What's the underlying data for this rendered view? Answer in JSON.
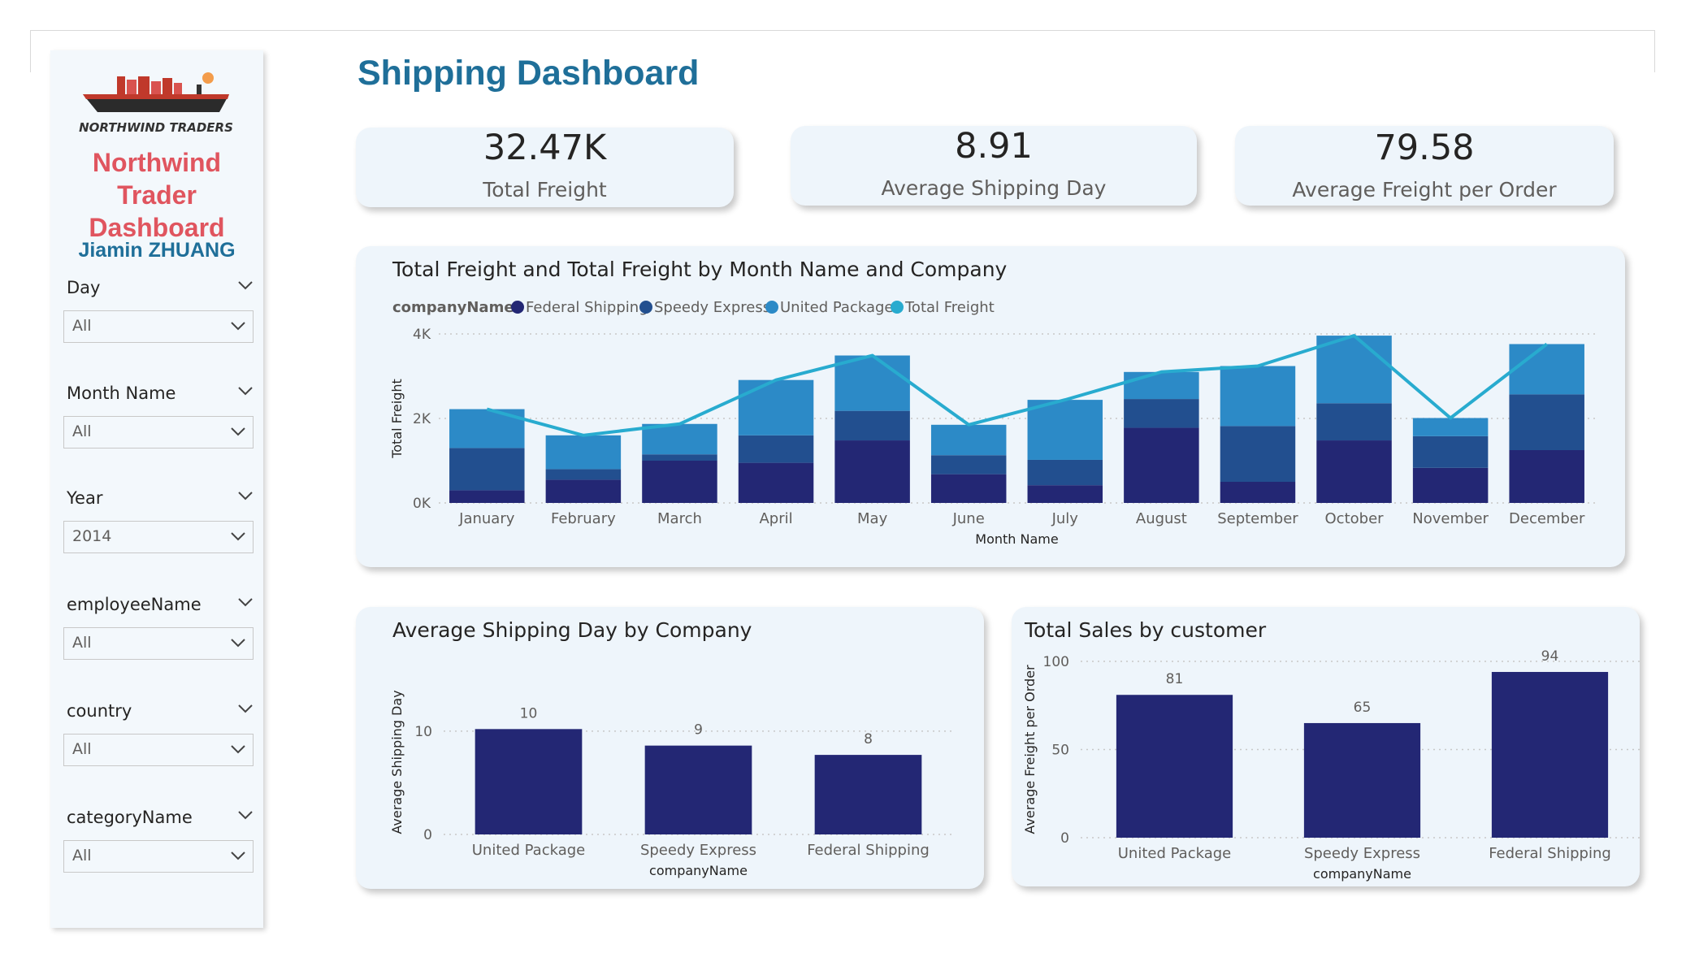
{
  "page_title": "Shipping Dashboard",
  "sidebar": {
    "logo_text": "NORTHWIND TRADERS",
    "title_lines": [
      "Northwind",
      "Trader",
      "Dashboard"
    ],
    "author": "Jiamin ZHUANG",
    "slicers": [
      {
        "label": "Day",
        "value": "All"
      },
      {
        "label": "Month Name",
        "value": "All"
      },
      {
        "label": "Year",
        "value": "2014"
      },
      {
        "label": "employeeName",
        "value": "All"
      },
      {
        "label": "country",
        "value": "All"
      },
      {
        "label": "categoryName",
        "value": "All"
      }
    ]
  },
  "kpis": [
    {
      "value": "32.47K",
      "label": "Total Freight"
    },
    {
      "value": "8.91",
      "label": "Average Shipping Day"
    },
    {
      "value": "79.58",
      "label": "Average Freight per Order"
    }
  ],
  "colors": {
    "federal": "#232774",
    "speedy": "#224f8f",
    "united": "#2c8ac7",
    "total_line": "#28abcf",
    "title_blue": "#1f6f99",
    "title_red": "#e0555f"
  },
  "chart_data": [
    {
      "type": "bar",
      "stacked": true,
      "title": "Total Freight and Total Freight by Month Name and Company",
      "legend_title": "companyName",
      "legend_position": "top-left",
      "xlabel": "Month Name",
      "ylabel": "Total Freight",
      "ytick_labels": [
        "0K",
        "2K",
        "4K"
      ],
      "yticks": [
        0,
        2000,
        4000
      ],
      "ylim": [
        0,
        4000
      ],
      "grid": true,
      "categories": [
        "January",
        "February",
        "March",
        "April",
        "May",
        "June",
        "July",
        "August",
        "September",
        "October",
        "November",
        "December"
      ],
      "series": [
        {
          "name": "Federal Shipping",
          "values": [
            300,
            550,
            1000,
            950,
            1480,
            680,
            420,
            1780,
            500,
            1480,
            830,
            1250
          ]
        },
        {
          "name": "Speedy Express",
          "values": [
            1000,
            250,
            150,
            650,
            700,
            450,
            600,
            680,
            1320,
            880,
            750,
            1320
          ]
        },
        {
          "name": "United Package",
          "values": [
            920,
            800,
            720,
            1310,
            1310,
            720,
            1420,
            640,
            1420,
            1600,
            430,
            1190
          ]
        }
      ],
      "line": {
        "name": "Total Freight",
        "values": [
          2220,
          1600,
          1870,
          2910,
          3490,
          1850,
          2440,
          3100,
          3240,
          3960,
          2010,
          3760
        ]
      }
    },
    {
      "type": "bar",
      "title": "Average Shipping Day by Company",
      "xlabel": "companyName",
      "ylabel": "Average Shipping Day",
      "ylim": [
        0,
        14
      ],
      "yticks": [
        0,
        10
      ],
      "grid": true,
      "categories": [
        "United Package",
        "Speedy Express",
        "Federal Shipping"
      ],
      "values": [
        10.2,
        8.6,
        7.7
      ],
      "data_labels": [
        "10",
        "9",
        "8"
      ]
    },
    {
      "type": "bar",
      "title": "Total Sales by customer",
      "xlabel": "companyName",
      "ylabel": "Average Freight per Order",
      "ylim": [
        0,
        100
      ],
      "yticks": [
        0,
        50,
        100
      ],
      "grid": true,
      "categories": [
        "United Package",
        "Speedy Express",
        "Federal Shipping"
      ],
      "values": [
        81,
        65,
        94
      ],
      "data_labels": [
        "81",
        "65",
        "94"
      ]
    }
  ]
}
